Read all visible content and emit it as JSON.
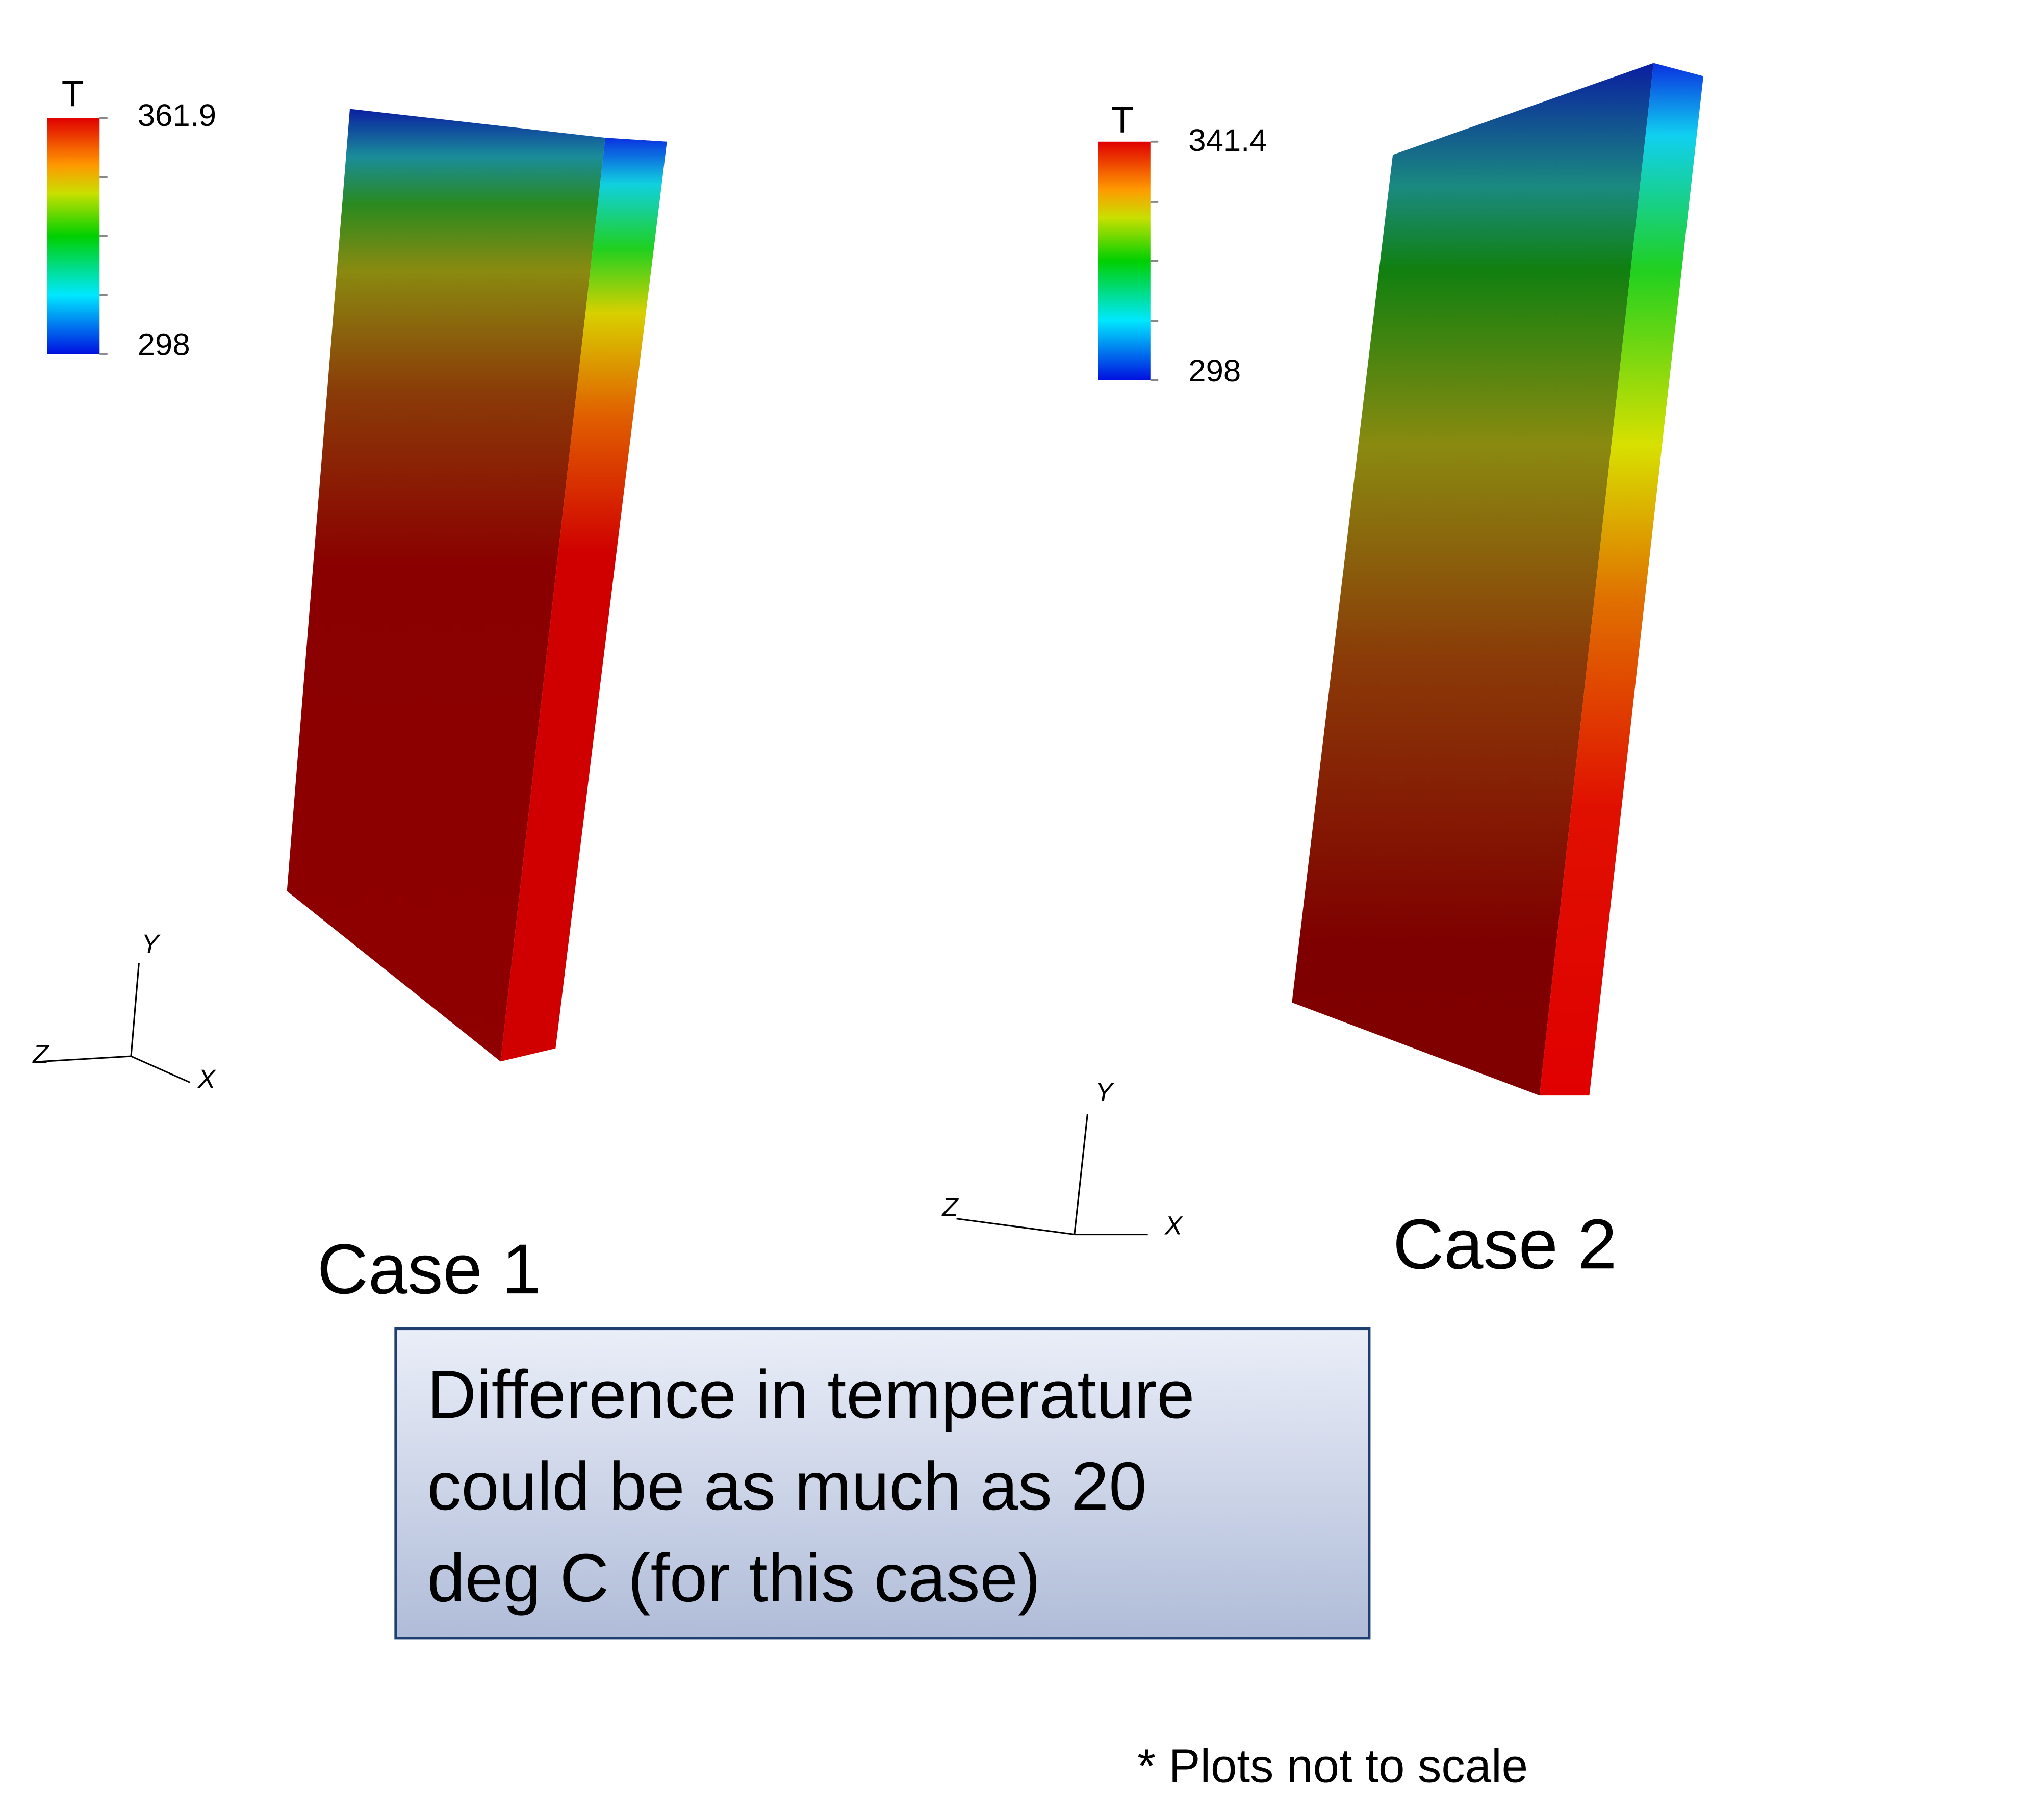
{
  "panels": [
    {
      "legend_title": "T",
      "max": "361.9",
      "min": "298",
      "case_label": "Case 1",
      "axes": {
        "y": "Y",
        "z": "Z",
        "x": "X"
      }
    },
    {
      "legend_title": "T",
      "max": "341.4",
      "min": "298",
      "case_label": "Case 2",
      "axes": {
        "y": "Y",
        "z": "Z",
        "x": "X"
      }
    }
  ],
  "note": {
    "lines": [
      "Difference in temperature",
      "could be as much as 20",
      "deg C (for this case)"
    ]
  },
  "footnote": "* Plots not to scale"
}
